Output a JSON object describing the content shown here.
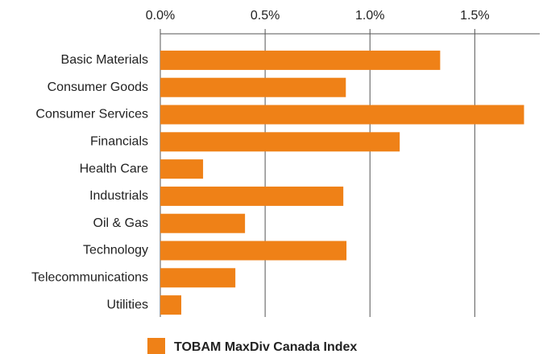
{
  "chart_data": {
    "type": "bar",
    "orientation": "horizontal",
    "categories": [
      "Basic Materials",
      "Consumer Goods",
      "Consumer Services",
      "Financials",
      "Health Care",
      "Industrials",
      "Oil & Gas",
      "Technology",
      "Telecommunications",
      "Utilities"
    ],
    "series": [
      {
        "name": "TOBAM MaxDiv Canada Index",
        "color": "#ef8117",
        "values": [
          1.335,
          0.885,
          1.735,
          1.142,
          0.204,
          0.873,
          0.404,
          0.888,
          0.358,
          0.1
        ]
      }
    ],
    "xlim": [
      0,
      1.81
    ],
    "xticks": [
      {
        "value": 0,
        "label": "0.0%"
      },
      {
        "value": 0.5,
        "label": "0.5%"
      },
      {
        "value": 1.0,
        "label": "1.0%"
      },
      {
        "value": 1.5,
        "label": "1.5%"
      }
    ],
    "grid": true,
    "legend": "bottom"
  }
}
